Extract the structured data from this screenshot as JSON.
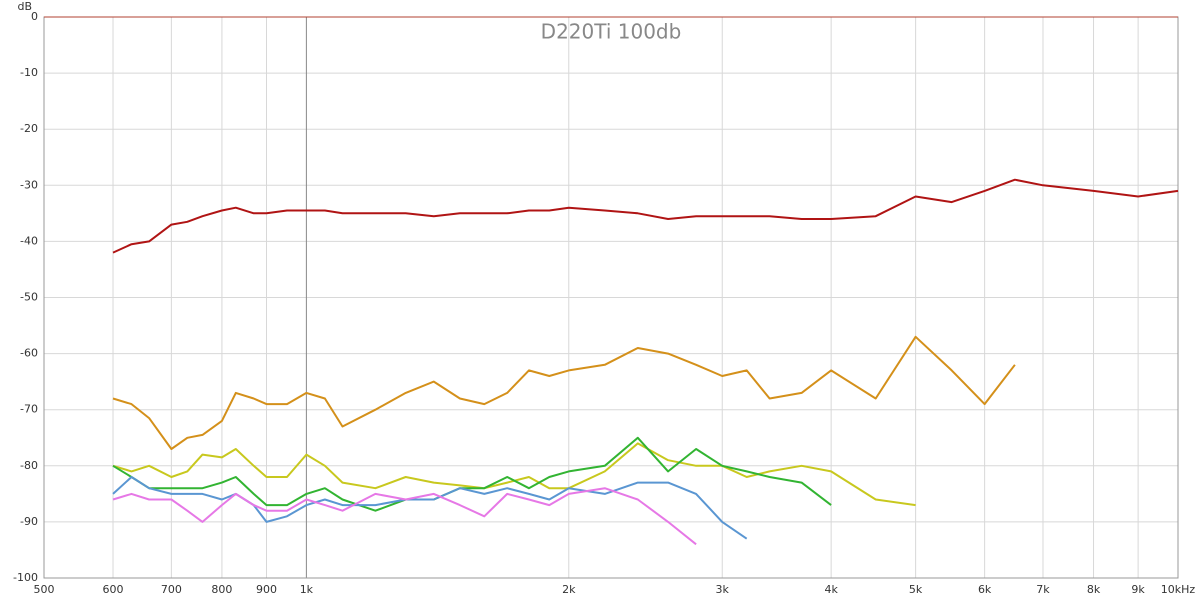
{
  "chart_data": {
    "type": "line",
    "title": "D220Ti 100db",
    "y_label": "dB",
    "log_x": true,
    "grid": true,
    "xlim": [
      500,
      10000
    ],
    "xticks": [
      500,
      600,
      700,
      800,
      900,
      {
        "value": 1000,
        "label": "1k"
      },
      {
        "value": 2000,
        "label": "2k"
      },
      {
        "value": 3000,
        "label": "3k"
      },
      {
        "value": 4000,
        "label": "4k"
      },
      {
        "value": 5000,
        "label": "5k"
      },
      {
        "value": 6000,
        "label": "6k"
      },
      {
        "value": 7000,
        "label": "7k"
      },
      {
        "value": 8000,
        "label": "8k"
      },
      {
        "value": 9000,
        "label": "9k"
      },
      {
        "value": 10000,
        "label": "10kHz"
      }
    ],
    "ylim": [
      -100,
      0
    ],
    "yticks": [
      0,
      -10,
      -20,
      -30,
      -40,
      -50,
      -60,
      -70,
      -80,
      -90,
      -100
    ],
    "x": [
      600,
      630,
      660,
      700,
      730,
      760,
      800,
      830,
      870,
      900,
      950,
      1000,
      1050,
      1100,
      1200,
      1300,
      1400,
      1500,
      1600,
      1700,
      1800,
      1900,
      2000,
      2200,
      2400,
      2600,
      2800,
      3000,
      3200,
      3400,
      3700,
      4000,
      4500,
      5000,
      5500,
      6000,
      6500,
      7000,
      8000,
      9000,
      10000
    ],
    "series": [
      {
        "color": "#b01414",
        "values": [
          -42,
          -40.5,
          -40,
          -37,
          -36.5,
          -35.5,
          -34.5,
          -34,
          -35,
          -35,
          -34.5,
          -34.5,
          -34.5,
          -35,
          -35,
          -35,
          -35.5,
          -35,
          -35,
          -35,
          -34.5,
          -34.5,
          -34,
          -34.5,
          -35,
          -36,
          -35.5,
          -35.5,
          -35.5,
          -35.5,
          -36,
          -36,
          -35.5,
          -32,
          -33,
          -31,
          -29,
          -30,
          -31,
          -32,
          -31
        ]
      },
      {
        "color": "#d4901a",
        "values": [
          -68,
          -69,
          -71.5,
          -77,
          -75,
          -74.5,
          -72,
          -67,
          -68,
          -69,
          -69,
          -67,
          -68,
          -73,
          -70,
          -67,
          -65,
          -68,
          -69,
          -67,
          -63,
          -64,
          -63,
          -62,
          -59,
          -60,
          -62,
          -64,
          -63,
          -68,
          -67,
          -63,
          -68,
          -57,
          -63,
          -69,
          -62,
          null,
          null,
          null,
          null
        ]
      },
      {
        "color": "#c8c81e",
        "values": [
          -80,
          -81,
          -80,
          -82,
          -81,
          -78,
          -78.5,
          -77,
          -80,
          -82,
          -82,
          -78,
          -80,
          -83,
          -84,
          -82,
          -83,
          -83.5,
          -84,
          -83,
          -82,
          -84,
          -84,
          -81,
          -76,
          -79,
          -80,
          -80,
          -82,
          -81,
          -80,
          -81,
          -86,
          -87,
          null,
          null,
          null,
          null,
          null,
          null,
          null
        ]
      },
      {
        "color": "#32b432",
        "values": [
          -80,
          -82,
          -84,
          -84,
          -84,
          -84,
          -83,
          -82,
          -85,
          -87,
          -87,
          -85,
          -84,
          -86,
          -88,
          -86,
          -86,
          -84,
          -84,
          -82,
          -84,
          -82,
          -81,
          -80,
          -75,
          -81,
          -77,
          -80,
          -81,
          -82,
          -83,
          -87,
          null,
          null,
          null,
          null,
          null,
          null,
          null,
          null,
          null
        ]
      },
      {
        "color": "#5a96d2",
        "values": [
          -85,
          -82,
          -84,
          -85,
          -85,
          -85,
          -86,
          -85,
          -87,
          -90,
          -89,
          -87,
          -86,
          -87,
          -87,
          -86,
          -86,
          -84,
          -85,
          -84,
          -85,
          -86,
          -84,
          -85,
          -83,
          -83,
          -85,
          -90,
          -93,
          null,
          null,
          null,
          null,
          null,
          null,
          null,
          null,
          null,
          null,
          null,
          null
        ]
      },
      {
        "color": "#e678e6",
        "values": [
          -86,
          -85,
          -86,
          -86,
          -88,
          -90,
          -87,
          -85,
          -87,
          -88,
          -88,
          -86,
          -87,
          -88,
          -85,
          -86,
          -85,
          -87,
          -89,
          -85,
          -86,
          -87,
          -85,
          -84,
          -86,
          -90,
          -94,
          null,
          null,
          null,
          null,
          null,
          null,
          null,
          null,
          null,
          null,
          null,
          null,
          null,
          null
        ]
      }
    ]
  }
}
